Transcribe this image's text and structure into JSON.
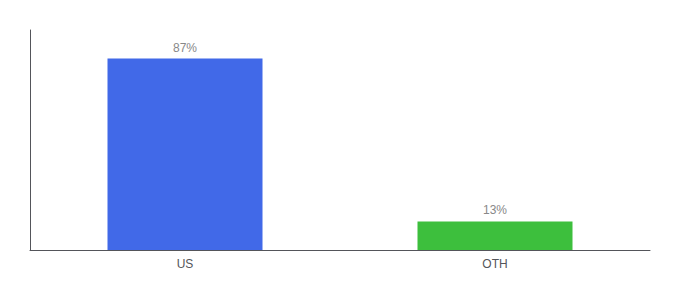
{
  "chart_data": {
    "type": "bar",
    "categories": [
      "US",
      "OTH"
    ],
    "values": [
      87,
      13
    ],
    "value_labels": [
      "87%",
      "13%"
    ],
    "colors": [
      "#4169E8",
      "#3DBF3D"
    ],
    "ylim": [
      0,
      100
    ],
    "data_labels": true,
    "tick_labels": "x",
    "grid": false
  }
}
